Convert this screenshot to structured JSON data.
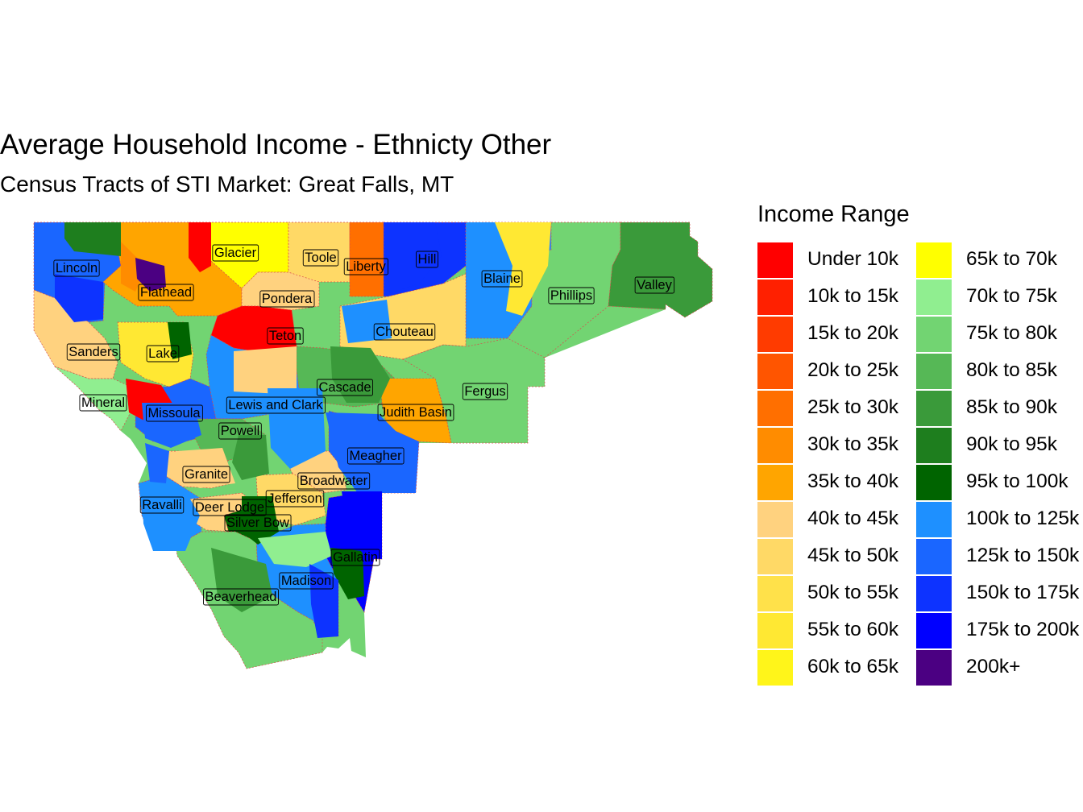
{
  "title": "Average Household Income - Ethnicty Other",
  "subtitle": "Census Tracts of STI Market: Great Falls, MT",
  "legend": {
    "title": "Income Range",
    "items": [
      {
        "label": "Under 10k",
        "color": "#FF0000"
      },
      {
        "label": "10k to 15k",
        "color": "#FF2000"
      },
      {
        "label": "15k to 20k",
        "color": "#FF3B00"
      },
      {
        "label": "20k to 25k",
        "color": "#FF5500"
      },
      {
        "label": "25k to 30k",
        "color": "#FF6F00"
      },
      {
        "label": "30k to 35k",
        "color": "#FF8C00"
      },
      {
        "label": "35k to 40k",
        "color": "#FFA500"
      },
      {
        "label": "40k to 45k",
        "color": "#FFD27F"
      },
      {
        "label": "45k to 50k",
        "color": "#FFD966"
      },
      {
        "label": "50k to 55k",
        "color": "#FFE14A"
      },
      {
        "label": "55k to 60k",
        "color": "#FFE833"
      },
      {
        "label": "60k to 65k",
        "color": "#FFF51A"
      },
      {
        "label": "65k to 70k",
        "color": "#FFFF00"
      },
      {
        "label": "70k to 75k",
        "color": "#90EE90"
      },
      {
        "label": "75k to 80k",
        "color": "#72D472"
      },
      {
        "label": "80k to 85k",
        "color": "#56B856"
      },
      {
        "label": "85k to 90k",
        "color": "#3A9A3A"
      },
      {
        "label": "90k to 95k",
        "color": "#1E7E1E"
      },
      {
        "label": "95k to 100k",
        "color": "#006400"
      },
      {
        "label": "100k to 125k",
        "color": "#1E90FF"
      },
      {
        "label": "125k to 150k",
        "color": "#1A66FF"
      },
      {
        "label": "150k to 175k",
        "color": "#0D33FF"
      },
      {
        "label": "175k to 200k",
        "color": "#0000FF"
      },
      {
        "label": "200k+",
        "color": "#4B0082"
      }
    ]
  },
  "counties": [
    {
      "name": "Lincoln",
      "fill": "#1A66FF"
    },
    {
      "name": "Flathead",
      "fill": "#FFA500"
    },
    {
      "name": "Glacier",
      "fill": "#FFFF00"
    },
    {
      "name": "Toole",
      "fill": "#FFD966"
    },
    {
      "name": "Liberty",
      "fill": "#FF6F00"
    },
    {
      "name": "Hill",
      "fill": "#0D33FF"
    },
    {
      "name": "Blaine",
      "fill": "#1E90FF"
    },
    {
      "name": "Phillips",
      "fill": "#72D472"
    },
    {
      "name": "Valley",
      "fill": "#3A9A3A"
    },
    {
      "name": "Pondera",
      "fill": "#FFD27F"
    },
    {
      "name": "Teton",
      "fill": "#FF0000"
    },
    {
      "name": "Chouteau",
      "fill": "#FFD966"
    },
    {
      "name": "Sanders",
      "fill": "#FFD27F"
    },
    {
      "name": "Lake",
      "fill": "#FFE833"
    },
    {
      "name": "Cascade",
      "fill": "#56B856"
    },
    {
      "name": "Fergus",
      "fill": "#72D472"
    },
    {
      "name": "Mineral",
      "fill": "#90EE90"
    },
    {
      "name": "Missoula",
      "fill": "#1A66FF"
    },
    {
      "name": "Lewis and Clark",
      "fill": "#1E90FF"
    },
    {
      "name": "Judith Basin",
      "fill": "#FFA500"
    },
    {
      "name": "Powell",
      "fill": "#56B856"
    },
    {
      "name": "Meagher",
      "fill": "#1A66FF"
    },
    {
      "name": "Granite",
      "fill": "#FFD27F"
    },
    {
      "name": "Broadwater",
      "fill": "#FFD27F"
    },
    {
      "name": "Jefferson",
      "fill": "#FFD966"
    },
    {
      "name": "Ravalli",
      "fill": "#1E90FF"
    },
    {
      "name": "Deer Lodge",
      "fill": "#FFD27F"
    },
    {
      "name": "Silver Bow",
      "fill": "#006400"
    },
    {
      "name": "Gallatin",
      "fill": "#0000FF"
    },
    {
      "name": "Madison",
      "fill": "#1E90FF"
    },
    {
      "name": "Beaverhead",
      "fill": "#72D472"
    }
  ]
}
